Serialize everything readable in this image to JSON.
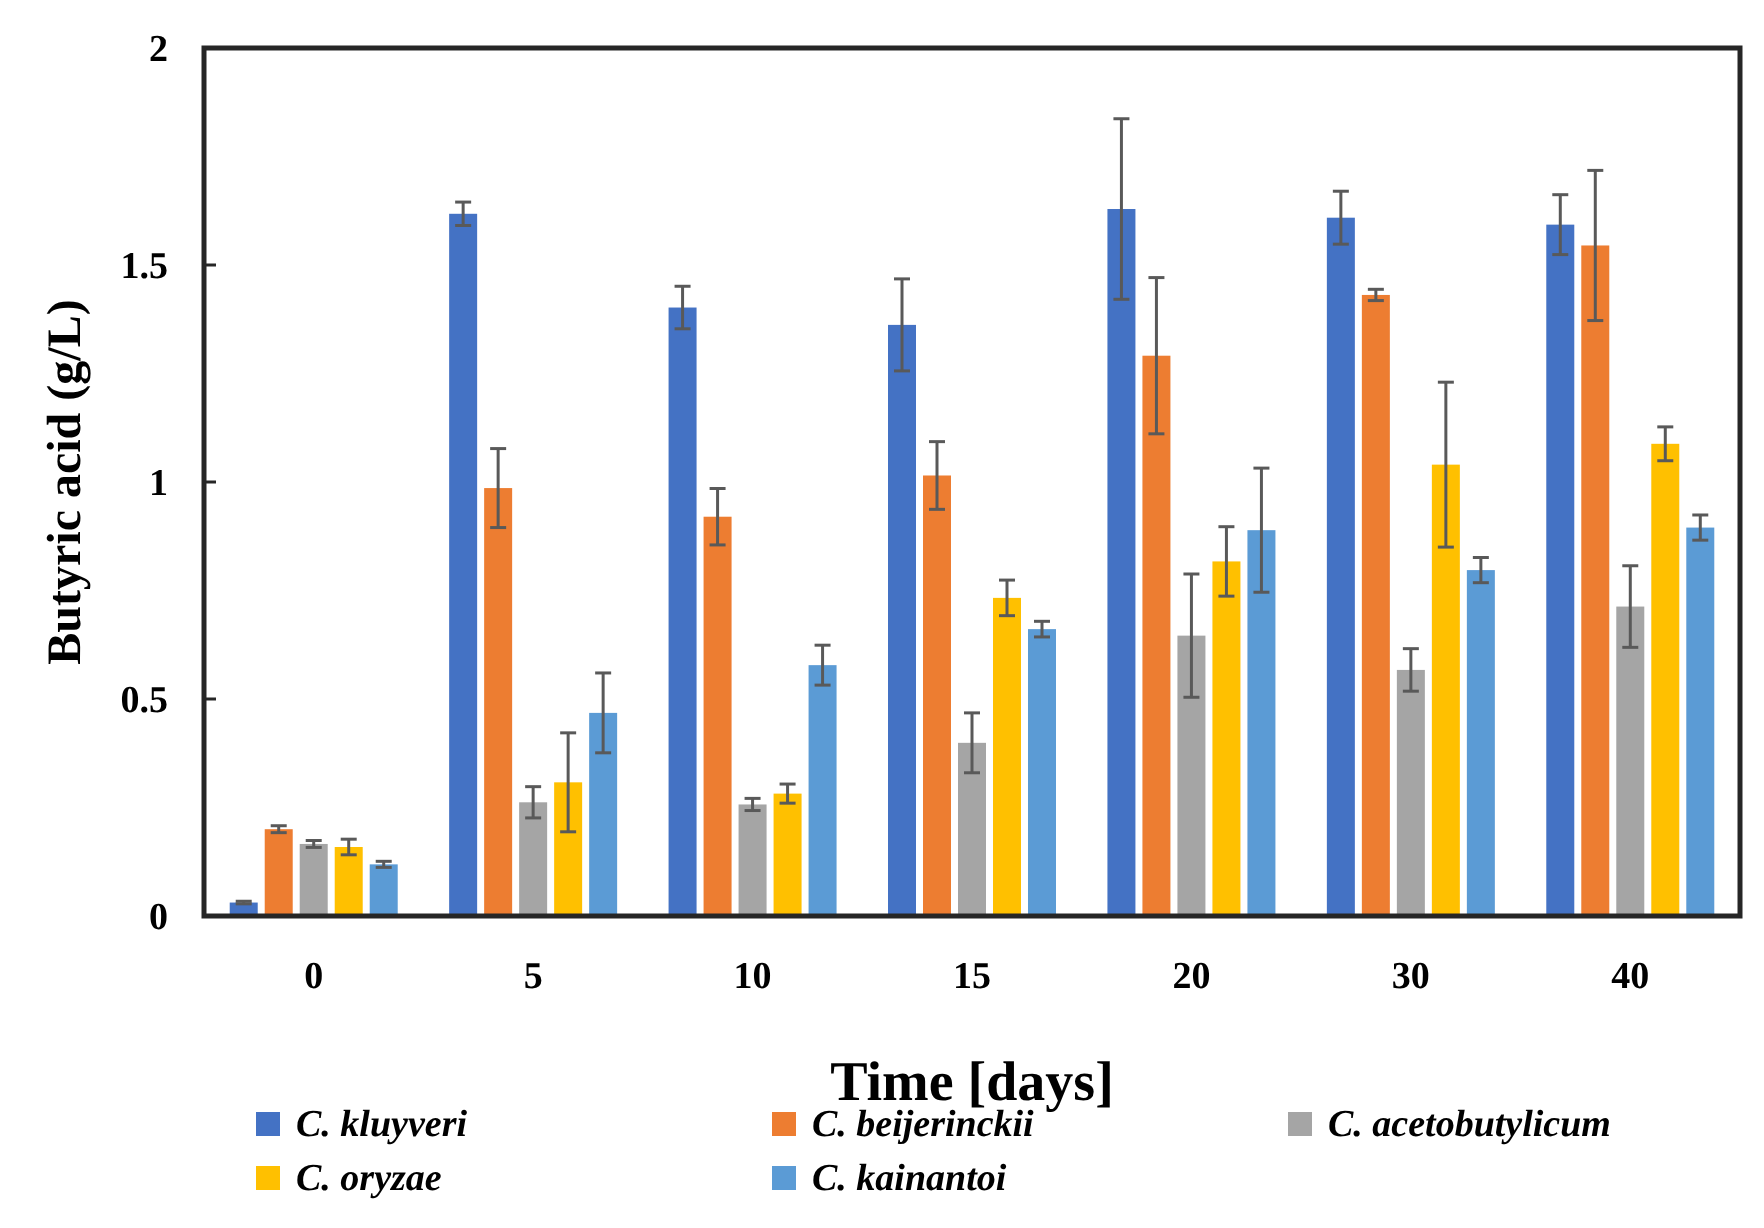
{
  "chart_data": {
    "type": "bar",
    "xlabel": "Time [days]",
    "ylabel": "Butyric acid (g/L)",
    "categories": [
      "0",
      "5",
      "10",
      "15",
      "20",
      "30",
      "40"
    ],
    "ylim": [
      0,
      2
    ],
    "yticks": [
      0,
      0.5,
      1,
      1.5,
      2
    ],
    "grid": false,
    "legend": "bottom",
    "series": [
      {
        "name": "C. kluyveri",
        "color": "#4472c4",
        "values": [
          0.031,
          1.618,
          1.402,
          1.362,
          1.629,
          1.609,
          1.593
        ],
        "errors": [
          0.003,
          0.027,
          0.049,
          0.106,
          0.208,
          0.061,
          0.069
        ]
      },
      {
        "name": "C. beijerinckii",
        "color": "#ed7d31",
        "values": [
          0.2,
          0.986,
          0.92,
          1.015,
          1.291,
          1.431,
          1.545
        ],
        "errors": [
          0.008,
          0.091,
          0.065,
          0.078,
          0.18,
          0.013,
          0.173
        ]
      },
      {
        "name": "C. acetobutylicum",
        "color": "#a5a5a5",
        "values": [
          0.166,
          0.262,
          0.257,
          0.399,
          0.646,
          0.567,
          0.713
        ],
        "errors": [
          0.008,
          0.036,
          0.014,
          0.069,
          0.142,
          0.049,
          0.094
        ]
      },
      {
        "name": "C. oryzae",
        "color": "#ffc000",
        "values": [
          0.159,
          0.308,
          0.282,
          0.733,
          0.817,
          1.04,
          1.088
        ],
        "errors": [
          0.018,
          0.114,
          0.022,
          0.041,
          0.08,
          0.19,
          0.039
        ]
      },
      {
        "name": "C. kainantoi",
        "color": "#5b9bd5",
        "values": [
          0.119,
          0.468,
          0.578,
          0.661,
          0.889,
          0.797,
          0.895
        ],
        "errors": [
          0.007,
          0.092,
          0.046,
          0.018,
          0.143,
          0.029,
          0.029
        ]
      }
    ]
  }
}
